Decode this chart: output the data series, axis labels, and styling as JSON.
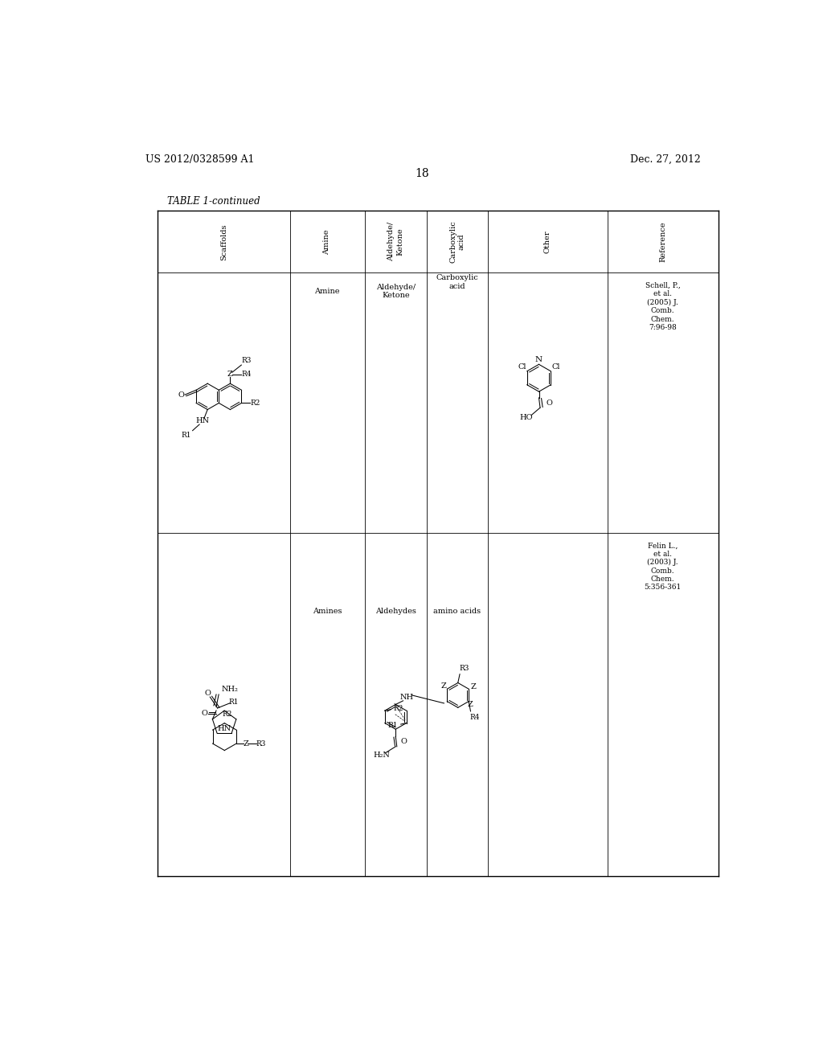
{
  "background_color": "#ffffff",
  "header_left": "US 2012/0328599 A1",
  "header_right": "Dec. 27, 2012",
  "page_number": "18",
  "table_title": "TABLE 1-continued",
  "col_headers": [
    "Scaffolds",
    "Amine",
    "Aldehyde/\nKetone",
    "Carboxylic\nacid",
    "Other",
    "Reference"
  ],
  "ref1": "Schell, P.,\net al.\n(2005) J.\nComb.\nChem.\n7:96-98",
  "ref2": "Felin L.,\net al.\n(2003) J.\nComb.\nChem.\n5:356-361",
  "row1_amine_label": "Amine",
  "row1_ald_label": "Aldehyde/\nKetone",
  "row1_carb_label": "Carboxylic\nacid",
  "row2_amine_label": "Amines",
  "row2_ald_label": "Aldehydes",
  "row2_carb_label": "amino acids"
}
